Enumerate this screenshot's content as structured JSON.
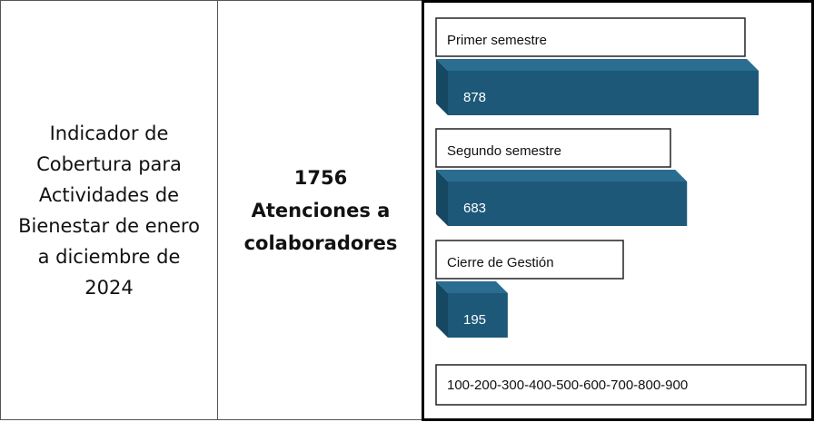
{
  "table": {
    "indicator": "Indicador de Cobertura para Actividades de Bienestar de enero a diciembre de 2024",
    "total": "1756",
    "total_label": "Atenciones a colaboradores"
  },
  "chart_data": {
    "type": "bar",
    "categories": [
      "Primer semestre",
      "Segundo semestre",
      "Cierre de Gestión"
    ],
    "values": [
      878,
      683,
      195
    ],
    "color": "#1d5878",
    "xlim": [
      0,
      900
    ],
    "axis_label": "100-200-300-400-500-600-700-800-900"
  }
}
